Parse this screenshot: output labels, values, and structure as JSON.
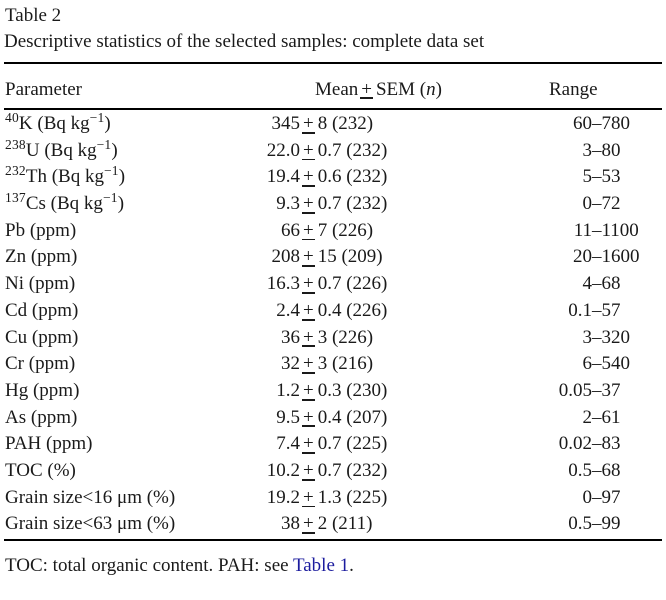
{
  "page": {
    "background": "#ffffff",
    "text_color": "#1a1a1a"
  },
  "colors": {
    "link": "#1c1c9e",
    "rule": "#000000"
  },
  "table": {
    "title": "Table 2",
    "caption": "Descriptive statistics of the selected samples: complete data set",
    "header": {
      "parameter": "Parameter",
      "mean_pre": "Mean",
      "mean_post": "SEM (",
      "mean_n": "n",
      "mean_close": ")",
      "range": "Range"
    },
    "pm_display": "+",
    "rows": [
      {
        "param": [
          {
            "t": "40",
            "s": 1
          },
          {
            "t": "K (Bq kg",
            "s": 0
          },
          {
            "t": "−1",
            "s": 1
          },
          {
            "t": ")",
            "s": 0
          }
        ],
        "mean": "345±8 (232)",
        "range": "60–780"
      },
      {
        "param": [
          {
            "t": "238",
            "s": 1
          },
          {
            "t": "U (Bq kg",
            "s": 0
          },
          {
            "t": "−1",
            "s": 1
          },
          {
            "t": ")",
            "s": 0
          }
        ],
        "mean": "22.0±0.7 (232)",
        "range": "3–80"
      },
      {
        "param": [
          {
            "t": "232",
            "s": 1
          },
          {
            "t": "Th (Bq kg",
            "s": 0
          },
          {
            "t": "−1",
            "s": 1
          },
          {
            "t": ")",
            "s": 0
          }
        ],
        "mean": "19.4±0.6 (232)",
        "range": "5–53"
      },
      {
        "param": [
          {
            "t": "137",
            "s": 1
          },
          {
            "t": "Cs (Bq kg",
            "s": 0
          },
          {
            "t": "−1",
            "s": 1
          },
          {
            "t": ")",
            "s": 0
          }
        ],
        "mean": "9.3±0.7 (232)",
        "range": "0–72"
      },
      {
        "param": [
          {
            "t": "Pb (ppm)",
            "s": 0
          }
        ],
        "mean": "66±7 (226)",
        "range": "11–1100"
      },
      {
        "param": [
          {
            "t": "Zn (ppm)",
            "s": 0
          }
        ],
        "mean": "208±15 (209)",
        "range": "20–1600"
      },
      {
        "param": [
          {
            "t": "Ni (ppm)",
            "s": 0
          }
        ],
        "mean": "16.3±0.7 (226)",
        "range": "4–68"
      },
      {
        "param": [
          {
            "t": "Cd (ppm)",
            "s": 0
          }
        ],
        "mean": "2.4±0.4 (226)",
        "range": "0.1–57"
      },
      {
        "param": [
          {
            "t": "Cu (ppm)",
            "s": 0
          }
        ],
        "mean": "36±3 (226)",
        "range": "3–320"
      },
      {
        "param": [
          {
            "t": "Cr (ppm)",
            "s": 0
          }
        ],
        "mean": "32±3 (216)",
        "range": "6–540"
      },
      {
        "param": [
          {
            "t": "Hg (ppm)",
            "s": 0
          }
        ],
        "mean": "1.2±0.3 (230)",
        "range": "0.05–37"
      },
      {
        "param": [
          {
            "t": "As (ppm)",
            "s": 0
          }
        ],
        "mean": "9.5±0.4 (207)",
        "range": "2–61"
      },
      {
        "param": [
          {
            "t": "PAH (ppm)",
            "s": 0
          }
        ],
        "mean": "7.4±0.7 (225)",
        "range": "0.02–83"
      },
      {
        "param": [
          {
            "t": "TOC (%)",
            "s": 0
          }
        ],
        "mean": "10.2±0.7 (232)",
        "range": "0.5–68"
      },
      {
        "param": [
          {
            "t": "Grain size<16 μm (%)",
            "s": 0
          }
        ],
        "mean": "19.2±1.3 (225)",
        "range": "0–97"
      },
      {
        "param": [
          {
            "t": "Grain size<63 μm (%)",
            "s": 0
          }
        ],
        "mean": "38±2 (211)",
        "range": "0.5–99"
      }
    ],
    "footnote": {
      "prefix": "TOC: total organic content. PAH: see ",
      "link": "Table 1",
      "suffix": "."
    }
  }
}
